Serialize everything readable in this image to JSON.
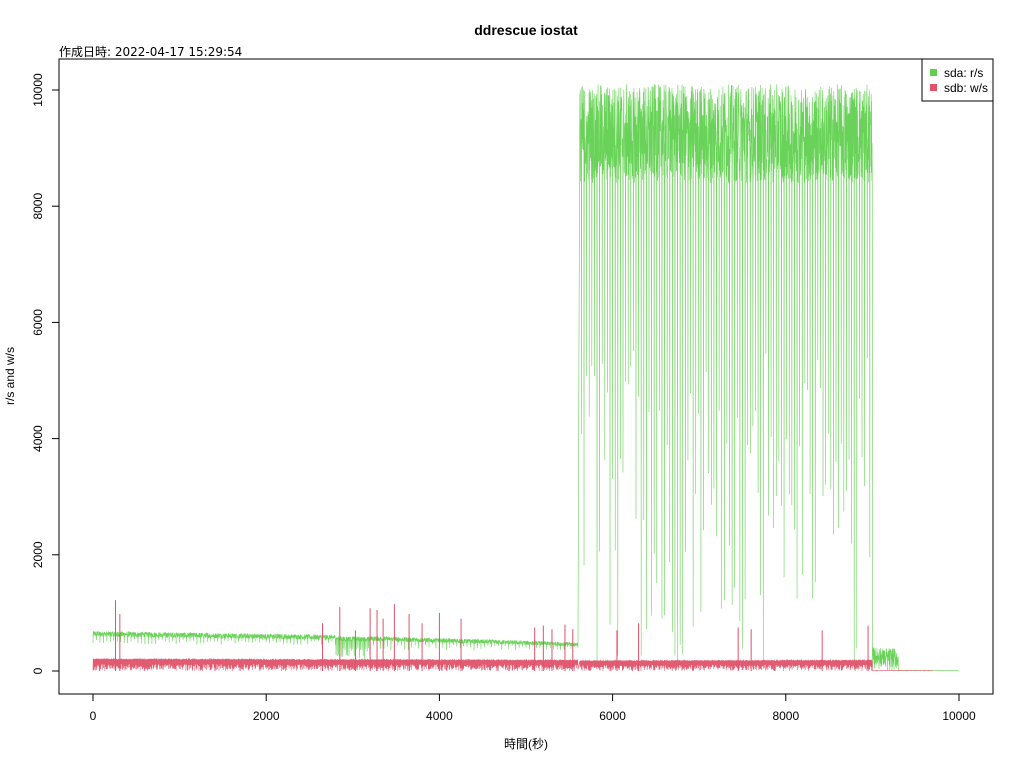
{
  "chart_data": {
    "type": "line",
    "title": "ddrescue iostat",
    "subtitle": "作成日時: 2022-04-17 15:29:54",
    "xlabel": "時間(秒)",
    "ylabel": "r/s and w/s",
    "xlim": [
      0,
      10000
    ],
    "ylim": [
      0,
      10000
    ],
    "x_ticks": [
      0,
      2000,
      4000,
      6000,
      8000,
      10000
    ],
    "y_ticks": [
      0,
      2000,
      4000,
      6000,
      8000,
      10000
    ],
    "grid": false,
    "legend_position": "top-right",
    "series": [
      {
        "name": "sda: r/s",
        "color": "#61d04f",
        "segments": [
          {
            "x_start": 0,
            "x_end": 2800,
            "baseline": 640,
            "baseline_end": 580,
            "low": 450,
            "dip_spacing": 40
          },
          {
            "x_start": 2800,
            "x_end": 3200,
            "baseline": 560,
            "baseline_end": 550,
            "low": 200,
            "dip_spacing": 15
          },
          {
            "x_start": 3200,
            "x_end": 5600,
            "baseline": 560,
            "baseline_end": 460,
            "low": 350,
            "dip_spacing": 40
          },
          {
            "x_start": 5620,
            "x_end": 9000,
            "baseline": 9300,
            "baseline_end": 9000,
            "high": 10100,
            "band_low": 8400,
            "low": 0,
            "dip_spacing": 30
          },
          {
            "x_start": 9000,
            "x_end": 9300,
            "baseline": 200,
            "baseline_end": 150,
            "high": 500,
            "low": 0,
            "dip_spacing": 25
          },
          {
            "x_start": 9300,
            "x_end": 10000,
            "baseline": 5,
            "baseline_end": 5,
            "low": 0,
            "dip_spacing": 100
          }
        ]
      },
      {
        "name": "sdb: w/s",
        "color": "#df536b",
        "segments": [
          {
            "x_start": 0,
            "x_end": 5600,
            "baseline": 200,
            "baseline_end": 180,
            "low": 0,
            "dip_spacing": 8
          },
          {
            "x_start": 5620,
            "x_end": 9000,
            "baseline": 170,
            "baseline_end": 180,
            "low": 0,
            "dip_spacing": 8
          },
          {
            "x_start": 9000,
            "x_end": 9700,
            "baseline": 10,
            "baseline_end": 5,
            "low": 0,
            "dip_spacing": 50
          }
        ],
        "spikes": [
          {
            "x": 260,
            "y": 1220
          },
          {
            "x": 310,
            "y": 980
          },
          {
            "x": 2650,
            "y": 820
          },
          {
            "x": 2850,
            "y": 1100
          },
          {
            "x": 3030,
            "y": 700
          },
          {
            "x": 3200,
            "y": 1080
          },
          {
            "x": 3280,
            "y": 1050
          },
          {
            "x": 3350,
            "y": 900
          },
          {
            "x": 3480,
            "y": 1150
          },
          {
            "x": 3650,
            "y": 980
          },
          {
            "x": 3800,
            "y": 820
          },
          {
            "x": 4000,
            "y": 1000
          },
          {
            "x": 4250,
            "y": 900
          },
          {
            "x": 5100,
            "y": 750
          },
          {
            "x": 5200,
            "y": 780
          },
          {
            "x": 5300,
            "y": 720
          },
          {
            "x": 5450,
            "y": 800
          },
          {
            "x": 5540,
            "y": 720
          },
          {
            "x": 6050,
            "y": 700
          },
          {
            "x": 6300,
            "y": 820
          },
          {
            "x": 7450,
            "y": 750
          },
          {
            "x": 7600,
            "y": 720
          },
          {
            "x": 8420,
            "y": 700
          },
          {
            "x": 8950,
            "y": 780
          }
        ]
      }
    ]
  }
}
